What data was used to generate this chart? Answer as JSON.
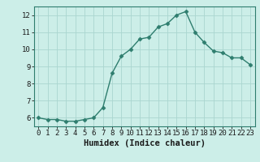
{
  "x": [
    0,
    1,
    2,
    3,
    4,
    5,
    6,
    7,
    8,
    9,
    10,
    11,
    12,
    13,
    14,
    15,
    16,
    17,
    18,
    19,
    20,
    21,
    22,
    23
  ],
  "y": [
    6.0,
    5.9,
    5.9,
    5.8,
    5.8,
    5.9,
    6.0,
    6.6,
    8.6,
    9.6,
    10.0,
    10.6,
    10.7,
    11.3,
    11.5,
    12.0,
    12.2,
    11.0,
    10.4,
    9.9,
    9.8,
    9.5,
    9.5,
    9.1
  ],
  "line_color": "#2e7d6e",
  "marker": "D",
  "marker_size": 2.5,
  "line_width": 1.0,
  "xlabel": "Humidex (Indice chaleur)",
  "xlim": [
    -0.5,
    23.5
  ],
  "ylim": [
    5.5,
    12.5
  ],
  "yticks": [
    6,
    7,
    8,
    9,
    10,
    11,
    12
  ],
  "xticks": [
    0,
    1,
    2,
    3,
    4,
    5,
    6,
    7,
    8,
    9,
    10,
    11,
    12,
    13,
    14,
    15,
    16,
    17,
    18,
    19,
    20,
    21,
    22,
    23
  ],
  "bg_color": "#cceee8",
  "grid_color": "#aad6d0",
  "axis_color": "#2e7d6e",
  "xlabel_fontsize": 7.5,
  "tick_fontsize": 6.5
}
